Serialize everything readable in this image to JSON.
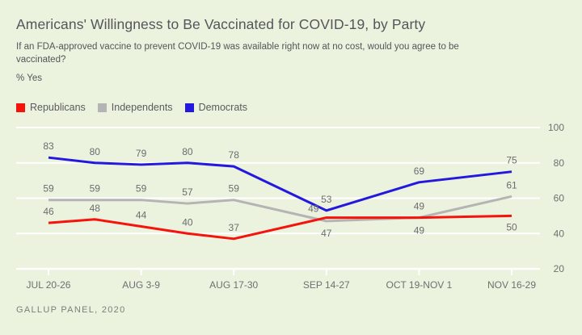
{
  "title": "Americans' Willingness to Be Vaccinated for COVID-19, by Party",
  "subtitle": "If an FDA-approved vaccine to prevent COVID-19 was available right now at no cost, would you agree to be vaccinated?",
  "metric_label": "% Yes",
  "source_note": "GALLUP PANEL, 2020",
  "colors": {
    "background": "#EBF2DE",
    "grid": "#FFFFFF",
    "heading_text": "#54565A",
    "axis_text": "#6E7072",
    "data_label_text": "#6B6D6F",
    "source_text": "#7C7F78",
    "republicans": "#F5130B",
    "independents": "#B4B4B4",
    "democrats": "#2418DF"
  },
  "legend": {
    "position": "top-left",
    "items": [
      {
        "label": "Republicans",
        "color": "#F5130B"
      },
      {
        "label": "Independents",
        "color": "#B4B4B4"
      },
      {
        "label": "Democrats",
        "color": "#2418DF"
      }
    ]
  },
  "chart_data": {
    "type": "line",
    "title": "Americans' Willingness to Be Vaccinated for COVID-19, by Party",
    "xlabel": "",
    "ylabel": "% Yes",
    "ylim": [
      20,
      100
    ],
    "yticks": [
      20,
      40,
      60,
      80,
      100
    ],
    "grid": "horizontal",
    "legend_position": "top-left",
    "x_tick_labels": [
      "JUL 20-26",
      "AUG 3-9",
      "AUG 17-30",
      "SEP 14-27",
      "OCT 19-NOV 1",
      "NOV 16-29"
    ],
    "x_units": [
      0,
      0.5,
      1,
      1.5,
      2,
      3,
      4,
      5
    ],
    "series": [
      {
        "name": "Independents",
        "color": "#B4B4B4",
        "values": [
          59,
          59,
          59,
          57,
          59,
          47,
          49,
          61
        ],
        "label_offsets": [
          [
            0,
            -10
          ],
          [
            0,
            -10
          ],
          [
            0,
            -10
          ],
          [
            0,
            -10
          ],
          [
            0,
            -10
          ],
          [
            0,
            19
          ],
          [
            0,
            -10
          ],
          [
            0,
            -10
          ]
        ]
      },
      {
        "name": "Republicans",
        "color": "#F5130B",
        "values": [
          46,
          48,
          44,
          40,
          37,
          49,
          49,
          50
        ],
        "label_offsets": [
          [
            0,
            -10
          ],
          [
            0,
            -10
          ],
          [
            0,
            -10
          ],
          [
            0,
            -10
          ],
          [
            0,
            -10
          ],
          [
            -16,
            -7
          ],
          [
            0,
            20
          ],
          [
            0,
            18
          ]
        ]
      },
      {
        "name": "Democrats",
        "color": "#2418DF",
        "values": [
          83,
          80,
          79,
          80,
          78,
          53,
          69,
          75
        ],
        "label_offsets": [
          [
            0,
            -10
          ],
          [
            0,
            -10
          ],
          [
            0,
            -10
          ],
          [
            0,
            -10
          ],
          [
            0,
            -10
          ],
          [
            0,
            -10
          ],
          [
            0,
            -10
          ],
          [
            0,
            -10
          ]
        ]
      }
    ]
  }
}
